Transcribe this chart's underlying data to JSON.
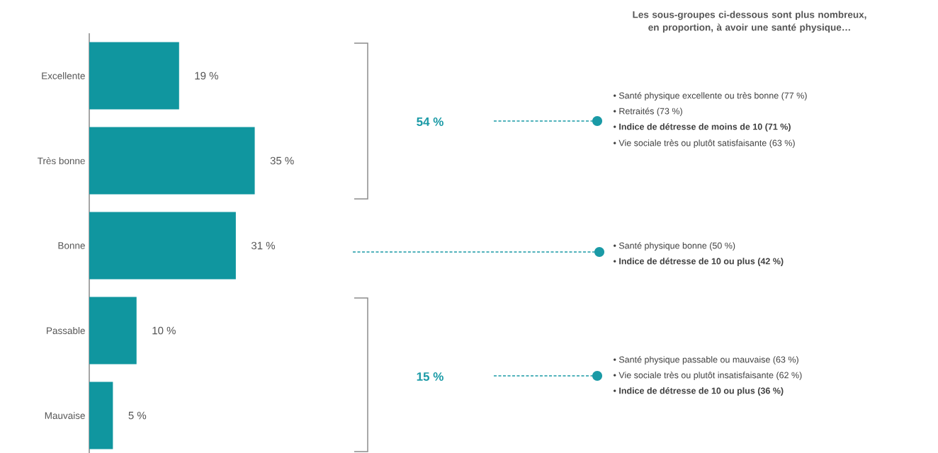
{
  "chart_data": {
    "type": "bar",
    "orientation": "horizontal",
    "title": "Les sous-groupes ci-dessous sont plus nombreux, en proportion, à avoir une santé physique…",
    "categories": [
      "Excellente",
      "Très bonne",
      "Bonne",
      "Passable",
      "Mauvaise"
    ],
    "values": [
      19,
      35,
      31,
      10,
      5
    ],
    "value_labels": [
      "19 %",
      "35 %",
      "31 %",
      "10 %",
      "5 %"
    ],
    "color": "#10969f",
    "annotations": [
      "54 %",
      "15 %",
      "•  Santé physique excellente ou très bonne (77 %)",
      "•  Retraités (73 %)",
      "•  **Indice de détresse de moins de 10 (71 %)**",
      "•  Vie sociale très ou plutôt satisfaisante (63 %)",
      "•  Santé physique bonne (50 %)",
      "•  **Indice de détresse de 10 ou plus (42 %)**",
      "•  Santé physique passable ou mauvaise (63 %)",
      "•  Vie sociale très ou plutôt insatisfaisante (62 %)",
      "•  **Indice de détresse de 10 ou plus (36 %)**"
    ]
  }
}
